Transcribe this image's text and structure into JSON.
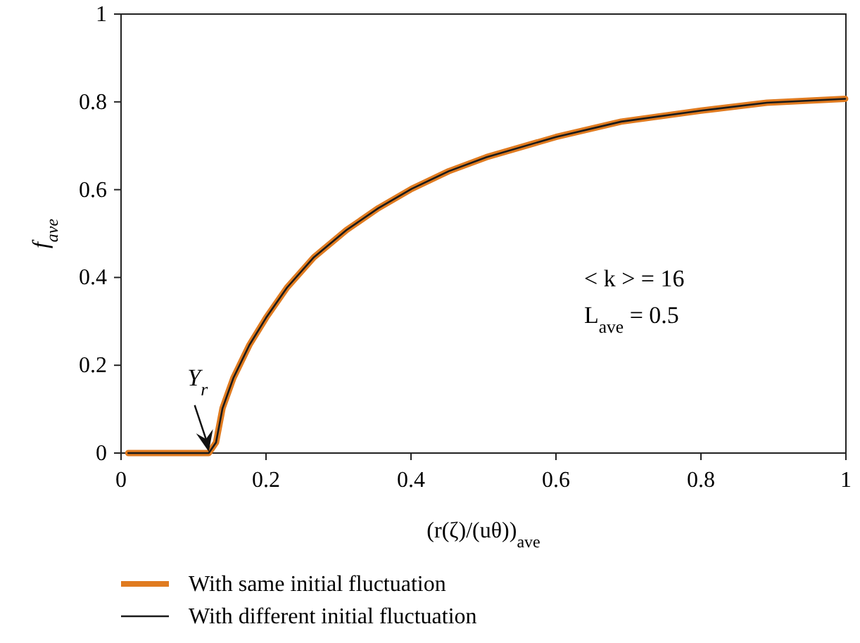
{
  "chart_data": {
    "type": "line",
    "x": [
      0.01,
      0.121,
      0.131,
      0.14,
      0.155,
      0.177,
      0.2,
      0.229,
      0.266,
      0.311,
      0.355,
      0.401,
      0.452,
      0.504,
      0.6,
      0.69,
      0.8,
      0.891,
      0.999
    ],
    "series": [
      {
        "name": "With same initial fluctuation",
        "color": "#e07b20",
        "values": [
          0,
          0,
          0.024,
          0.102,
          0.171,
          0.246,
          0.308,
          0.377,
          0.446,
          0.508,
          0.558,
          0.602,
          0.642,
          0.674,
          0.72,
          0.755,
          0.78,
          0.798,
          0.807
        ]
      },
      {
        "name": "With different initial fluctuation",
        "color": "#1a1a1a",
        "values": [
          0,
          0,
          0.024,
          0.102,
          0.171,
          0.246,
          0.308,
          0.377,
          0.446,
          0.508,
          0.558,
          0.602,
          0.642,
          0.674,
          0.72,
          0.755,
          0.78,
          0.798,
          0.807
        ]
      }
    ],
    "xlabel": "(r(ζ)/(uθ))$_{ave}$",
    "ylabel": "f$_{ave}$",
    "xlim": [
      0,
      1
    ],
    "ylim": [
      0,
      1
    ],
    "xticks": [
      0,
      0.2,
      0.4,
      0.6,
      0.8,
      1
    ],
    "yticks": [
      0,
      0.2,
      0.4,
      0.6,
      0.8,
      1
    ],
    "annotations": [
      {
        "text": "Y$_{r}$",
        "x": 0.121,
        "y": 0
      },
      "< k > = 16",
      "L$_{ave}$ = 0.5"
    ],
    "grid": false,
    "legend": "bottom",
    "marker": "none",
    "line_style": "solid"
  }
}
